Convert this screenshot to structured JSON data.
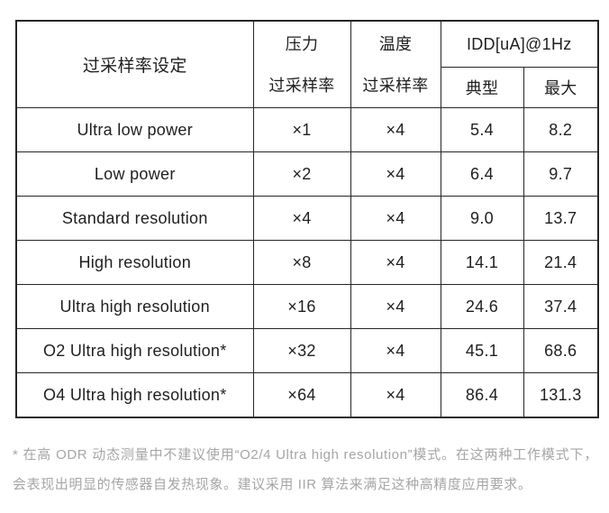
{
  "table": {
    "header": {
      "setting": "过采样率设定",
      "pressure_line1": "压力",
      "pressure_line2": "过采样率",
      "temperature_line1": "温度",
      "temperature_line2": "过采样率",
      "idd": "IDD[uA]@1Hz",
      "typical": "典型",
      "max": "最大"
    },
    "rows": [
      {
        "setting": "Ultra low power",
        "pressure": "×1",
        "temperature": "×4",
        "typical": "5.4",
        "max": "8.2"
      },
      {
        "setting": "Low power",
        "pressure": "×2",
        "temperature": "×4",
        "typical": "6.4",
        "max": "9.7"
      },
      {
        "setting": "Standard resolution",
        "pressure": "×4",
        "temperature": "×4",
        "typical": "9.0",
        "max": "13.7"
      },
      {
        "setting": "High resolution",
        "pressure": "×8",
        "temperature": "×4",
        "typical": "14.1",
        "max": "21.4"
      },
      {
        "setting": "Ultra high resolution",
        "pressure": "×16",
        "temperature": "×4",
        "typical": "24.6",
        "max": "37.4"
      },
      {
        "setting": "O2 Ultra high resolution*",
        "pressure": "×32",
        "temperature": "×4",
        "typical": "45.1",
        "max": "68.6"
      },
      {
        "setting": "O4 Ultra high resolution*",
        "pressure": "×64",
        "temperature": "×4",
        "typical": "86.4",
        "max": "131.3"
      }
    ]
  },
  "footnote": {
    "line1": "* 在高 ODR 动态测量中不建议使用“O2/4 Ultra high resolution”模式。在这两种工作模式下，",
    "line2": "会表现出明显的传感器自发热现象。建议采用 IIR 算法来满足这种高精度应用要求。"
  },
  "colors": {
    "border": "#262626",
    "table_text": "#1f1f1f",
    "footnote_text": "#a6a6a6",
    "background": "#ffffff"
  }
}
